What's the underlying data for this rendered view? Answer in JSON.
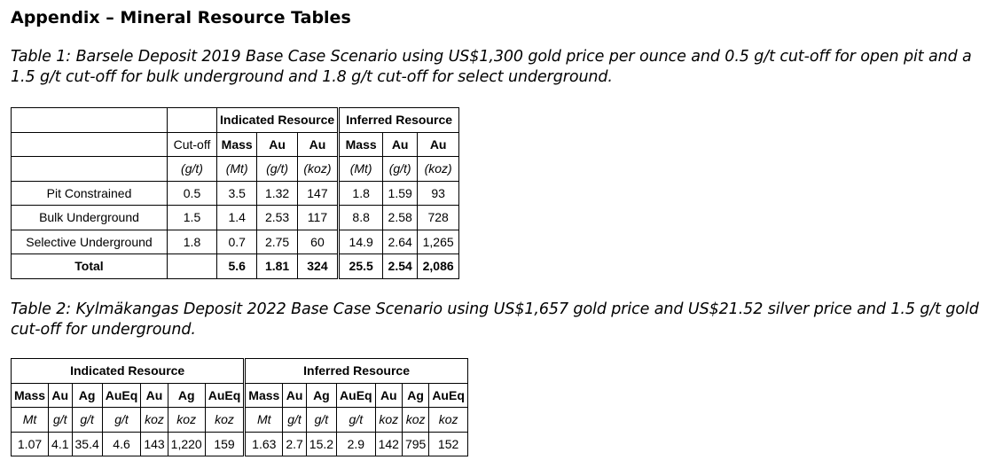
{
  "heading": "Appendix – Mineral Resource Tables",
  "table1": {
    "caption": "Table 1: Barsele Deposit 2019 Base Case Scenario using US$1,300 gold price per ounce and 0.5 g/t cut-off for open pit and a 1.5 g/t cut-off for bulk underground and 1.8 g/t cut-off for select underground.",
    "group_indicated": "Indicated Resource",
    "group_inferred": "Inferred Resource",
    "headers": [
      "Cut-off",
      "Mass",
      "Au",
      "Au",
      "Mass",
      "Au",
      "Au"
    ],
    "units": [
      "(g/t)",
      "(Mt)",
      "(g/t)",
      "(koz)",
      "(Mt)",
      "(g/t)",
      "(koz)"
    ],
    "rows": [
      {
        "label": "Pit Constrained",
        "cells": [
          "0.5",
          "3.5",
          "1.32",
          "147",
          "1.8",
          "1.59",
          "93"
        ]
      },
      {
        "label": "Bulk Underground",
        "cells": [
          "1.5",
          "1.4",
          "2.53",
          "117",
          "8.8",
          "2.58",
          "728"
        ]
      },
      {
        "label": "Selective Underground",
        "cells": [
          "1.8",
          "0.7",
          "2.75",
          "60",
          "14.9",
          "2.64",
          "1,265"
        ]
      }
    ],
    "total": {
      "label": "Total",
      "cells": [
        "",
        "5.6",
        "1.81",
        "324",
        "25.5",
        "2.54",
        "2,086"
      ]
    }
  },
  "table2": {
    "caption": "Table 2: Kylmäkangas Deposit 2022 Base Case Scenario using US$1,657 gold price and US$21.52 silver price and 1.5 g/t gold cut-off for underground.",
    "group_indicated": "Indicated Resource",
    "group_inferred": "Inferred Resource",
    "headers_indicated": [
      "Mass",
      "Au",
      "Ag",
      "AuEq",
      "Au",
      "Ag",
      "AuEq"
    ],
    "units_indicated": [
      "Mt",
      "g/t",
      "g/t",
      "g/t",
      "koz",
      "koz",
      "koz"
    ],
    "values_indicated": [
      "1.07",
      "4.1",
      "35.4",
      "4.6",
      "143",
      "1,220",
      "159"
    ],
    "headers_inferred": [
      "Mass",
      "Au",
      "Ag",
      "AuEq",
      "Au",
      "Ag",
      "AuEq"
    ],
    "units_inferred": [
      "Mt",
      "g/t",
      "g/t",
      "g/t",
      "koz",
      "koz",
      "koz"
    ],
    "values_inferred": [
      "1.63",
      "2.7",
      "15.2",
      "2.9",
      "142",
      "795",
      "152"
    ]
  }
}
